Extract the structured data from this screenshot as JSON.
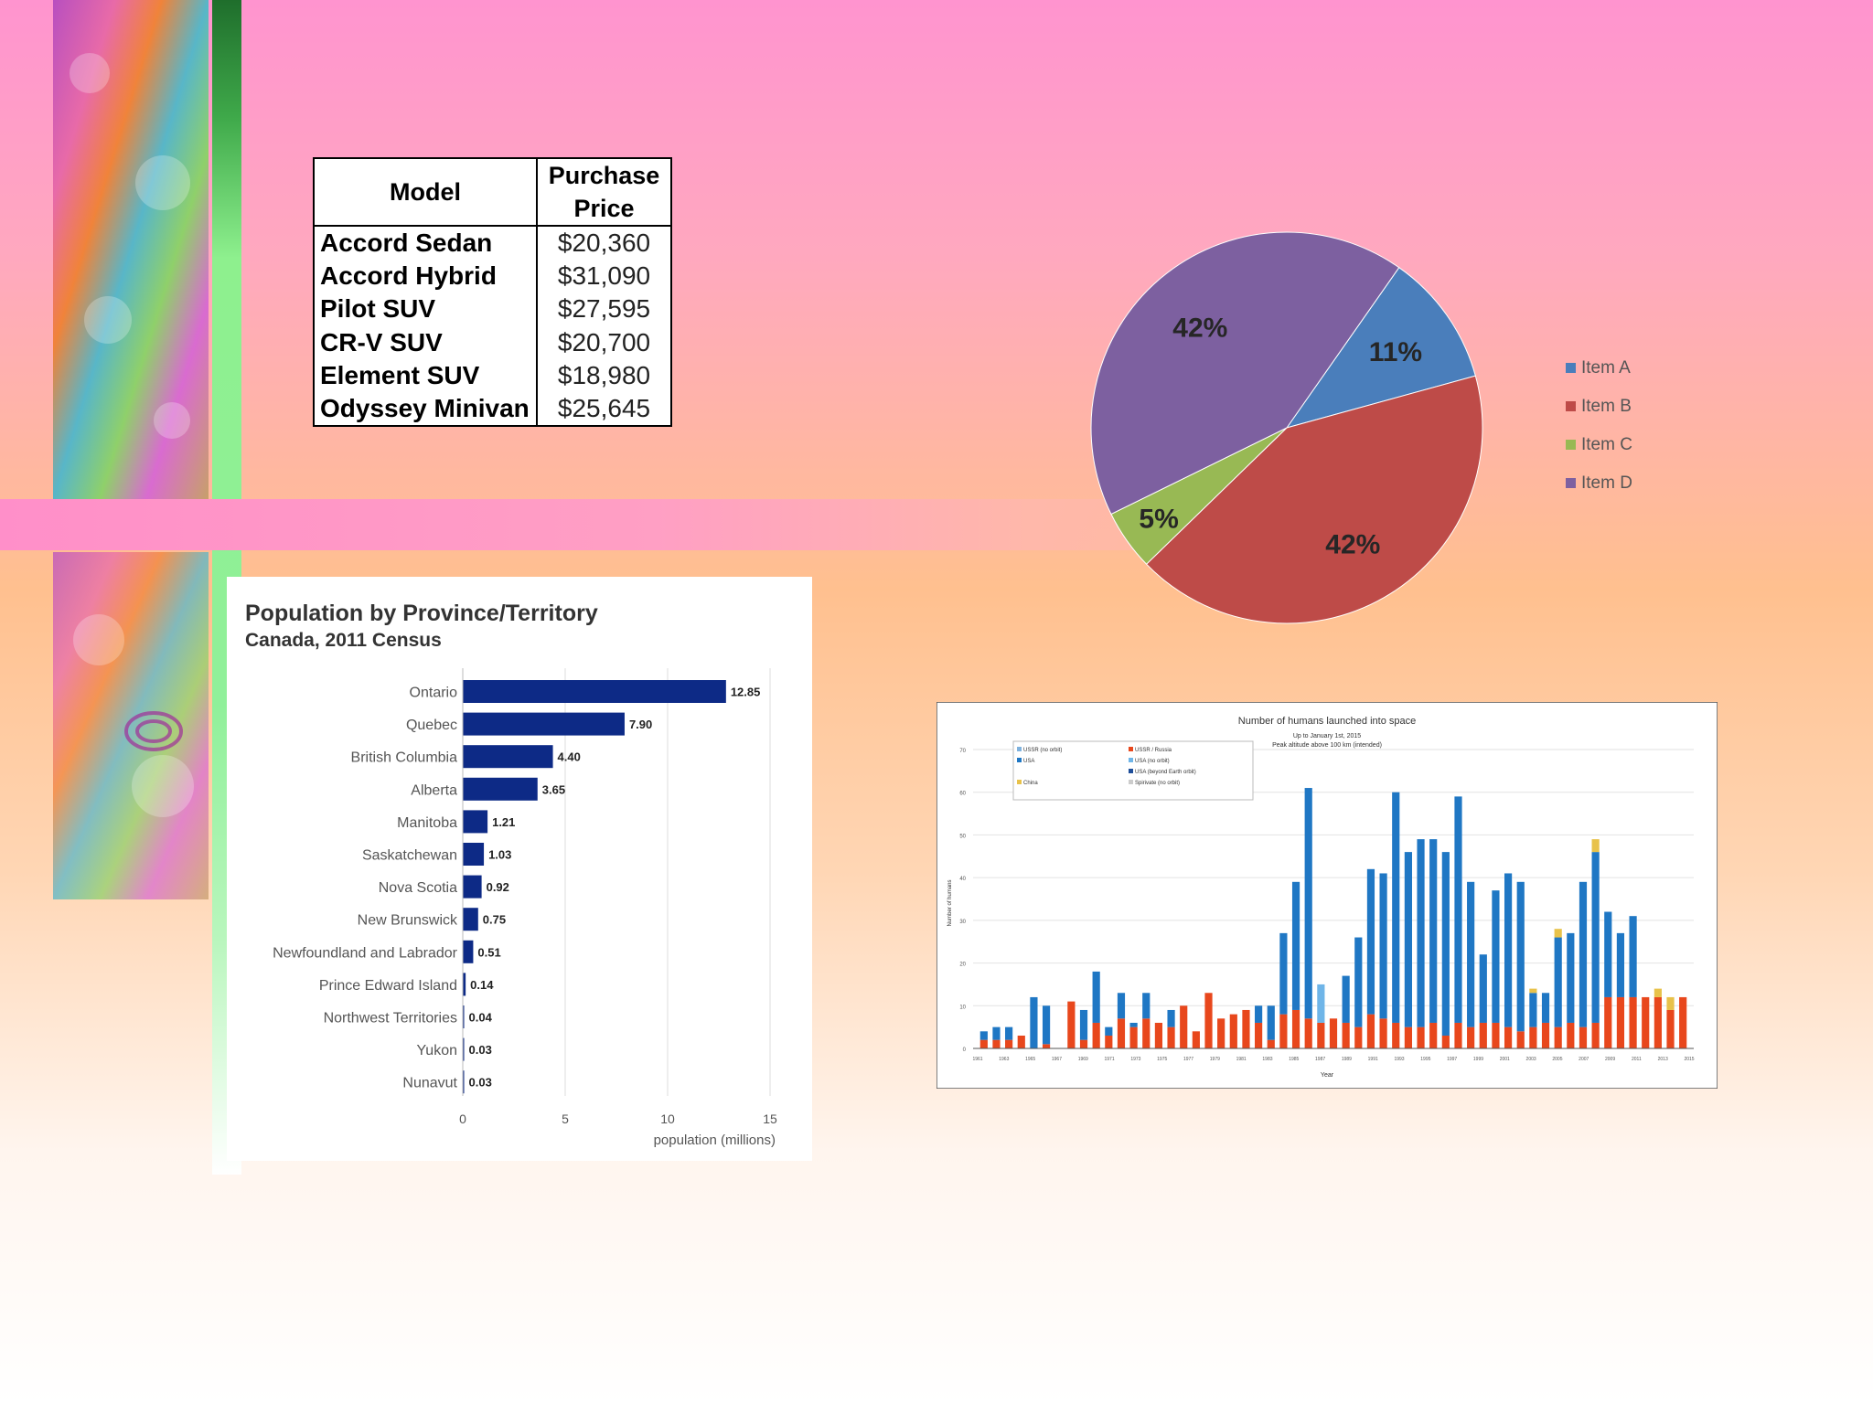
{
  "colors": {
    "navy_bar": "#0d2a86",
    "pie_a": "#4a7ebb",
    "pie_b": "#be4b48",
    "pie_c": "#98b954",
    "pie_d": "#7d60a0",
    "space_red": "#e8471c",
    "space_blue": "#1f77c4",
    "space_light": "#6fb5e8",
    "space_yellow": "#e8c24a"
  },
  "table": {
    "headers": [
      "Model",
      "Purchase Price"
    ],
    "rows": [
      {
        "model": "Accord Sedan",
        "price": "$20,360"
      },
      {
        "model": "Accord Hybrid",
        "price": "$31,090"
      },
      {
        "model": "Pilot SUV",
        "price": "$27,595"
      },
      {
        "model": "CR-V SUV",
        "price": "$20,700"
      },
      {
        "model": "Element SUV",
        "price": "$18,980"
      },
      {
        "model": "Odyssey Minivan",
        "price": "$25,645"
      }
    ]
  },
  "chart_data": [
    {
      "type": "pie",
      "slices": [
        {
          "name": "Item A",
          "value": 11,
          "label": "11%"
        },
        {
          "name": "Item B",
          "value": 42,
          "label": "42%"
        },
        {
          "name": "Item C",
          "value": 5,
          "label": "5%"
        },
        {
          "name": "Item D",
          "value": 42,
          "label": "42%"
        }
      ],
      "legend": "right"
    },
    {
      "type": "bar",
      "orientation": "horizontal",
      "title": "Population by Province/Territory",
      "subtitle": "Canada, 2011 Census",
      "xlabel": "population (millions)",
      "xlim": [
        0,
        15
      ],
      "xticks": [
        0,
        5,
        10,
        15
      ],
      "categories": [
        "Ontario",
        "Quebec",
        "British Columbia",
        "Alberta",
        "Manitoba",
        "Saskatchewan",
        "Nova Scotia",
        "New Brunswick",
        "Newfoundland and Labrador",
        "Prince Edward Island",
        "Northwest Territories",
        "Yukon",
        "Nunavut"
      ],
      "values": [
        12.85,
        7.9,
        4.4,
        3.65,
        1.21,
        1.03,
        0.92,
        0.75,
        0.51,
        0.14,
        0.04,
        0.03,
        0.03
      ],
      "value_labels": [
        "12.85",
        "7.90",
        "4.40",
        "3.65",
        "1.21",
        "1.03",
        "0.92",
        "0.75",
        "0.51",
        "0.14",
        "0.04",
        "0.03",
        "0.03"
      ],
      "grid": true
    },
    {
      "type": "bar",
      "stacked": true,
      "title": "Number of humans launched into space",
      "subtitle_lines": [
        "Up to January 1st, 2015",
        "Peak altitude above 100 km (intended)"
      ],
      "xlabel": "Year",
      "ylabel": "Number of humans",
      "ylim": [
        0,
        70
      ],
      "yticks": [
        0,
        10,
        20,
        30,
        40,
        50,
        60,
        70
      ],
      "xticks": [
        "1961",
        "1963",
        "1965",
        "1967",
        "1969",
        "1971",
        "1973",
        "1975",
        "1977",
        "1979",
        "1981",
        "1983",
        "1985",
        "1987",
        "1989",
        "1991",
        "1993",
        "1995",
        "1997",
        "1999",
        "2001",
        "2003",
        "2005",
        "2007",
        "2009",
        "2011",
        "2013",
        "2015"
      ],
      "legend_entries": [
        "USSR (no orbit)",
        "USSR / Russia",
        "USA",
        "USA (no orbit)",
        "USA (beyond Earth orbit)",
        "China",
        "Spirivate (no orbit)"
      ],
      "series": [
        {
          "name": "USSR / Russia",
          "values": [
            2,
            2,
            2,
            3,
            0,
            1,
            0,
            11,
            2,
            6,
            3,
            7,
            5,
            7,
            6,
            5,
            10,
            4,
            13,
            7,
            8,
            9,
            6,
            2,
            8,
            9,
            7,
            6,
            7,
            6,
            5,
            8,
            7,
            6,
            5,
            5,
            6,
            3,
            6,
            5,
            6,
            6,
            5,
            4,
            5,
            6,
            5,
            6,
            5,
            6,
            12,
            12,
            12,
            12,
            12,
            9,
            12
          ]
        },
        {
          "name": "USA",
          "values": [
            2,
            3,
            3,
            0,
            12,
            9,
            0,
            0,
            7,
            12,
            2,
            6,
            1,
            6,
            0,
            4,
            0,
            0,
            0,
            0,
            0,
            0,
            4,
            8,
            19,
            30,
            54,
            0,
            0,
            11,
            21,
            34,
            34,
            54,
            41,
            44,
            43,
            43,
            53,
            34,
            16,
            31,
            36,
            35,
            8,
            7,
            21,
            21,
            34,
            40,
            20,
            15,
            19,
            0,
            0,
            0,
            0
          ]
        },
        {
          "name": "USA (no orbit)",
          "values": [
            0,
            0,
            0,
            0,
            0,
            0,
            0,
            0,
            0,
            0,
            0,
            0,
            0,
            0,
            0,
            0,
            0,
            0,
            0,
            0,
            0,
            0,
            0,
            0,
            0,
            0,
            0,
            9,
            0,
            0,
            0,
            0,
            0,
            0,
            0,
            0,
            0,
            0,
            0,
            0,
            0,
            0,
            0,
            0,
            0,
            0,
            0,
            0,
            0,
            0,
            0,
            0,
            0,
            0,
            0,
            0,
            0
          ]
        },
        {
          "name": "China",
          "values": [
            0,
            0,
            0,
            0,
            0,
            0,
            0,
            0,
            0,
            0,
            0,
            0,
            0,
            0,
            0,
            0,
            0,
            0,
            0,
            0,
            0,
            0,
            0,
            0,
            0,
            0,
            0,
            0,
            0,
            0,
            0,
            0,
            0,
            0,
            0,
            0,
            0,
            0,
            0,
            0,
            0,
            0,
            0,
            0,
            1,
            0,
            2,
            0,
            0,
            3,
            0,
            0,
            0,
            0,
            2,
            3,
            0
          ]
        }
      ]
    }
  ]
}
